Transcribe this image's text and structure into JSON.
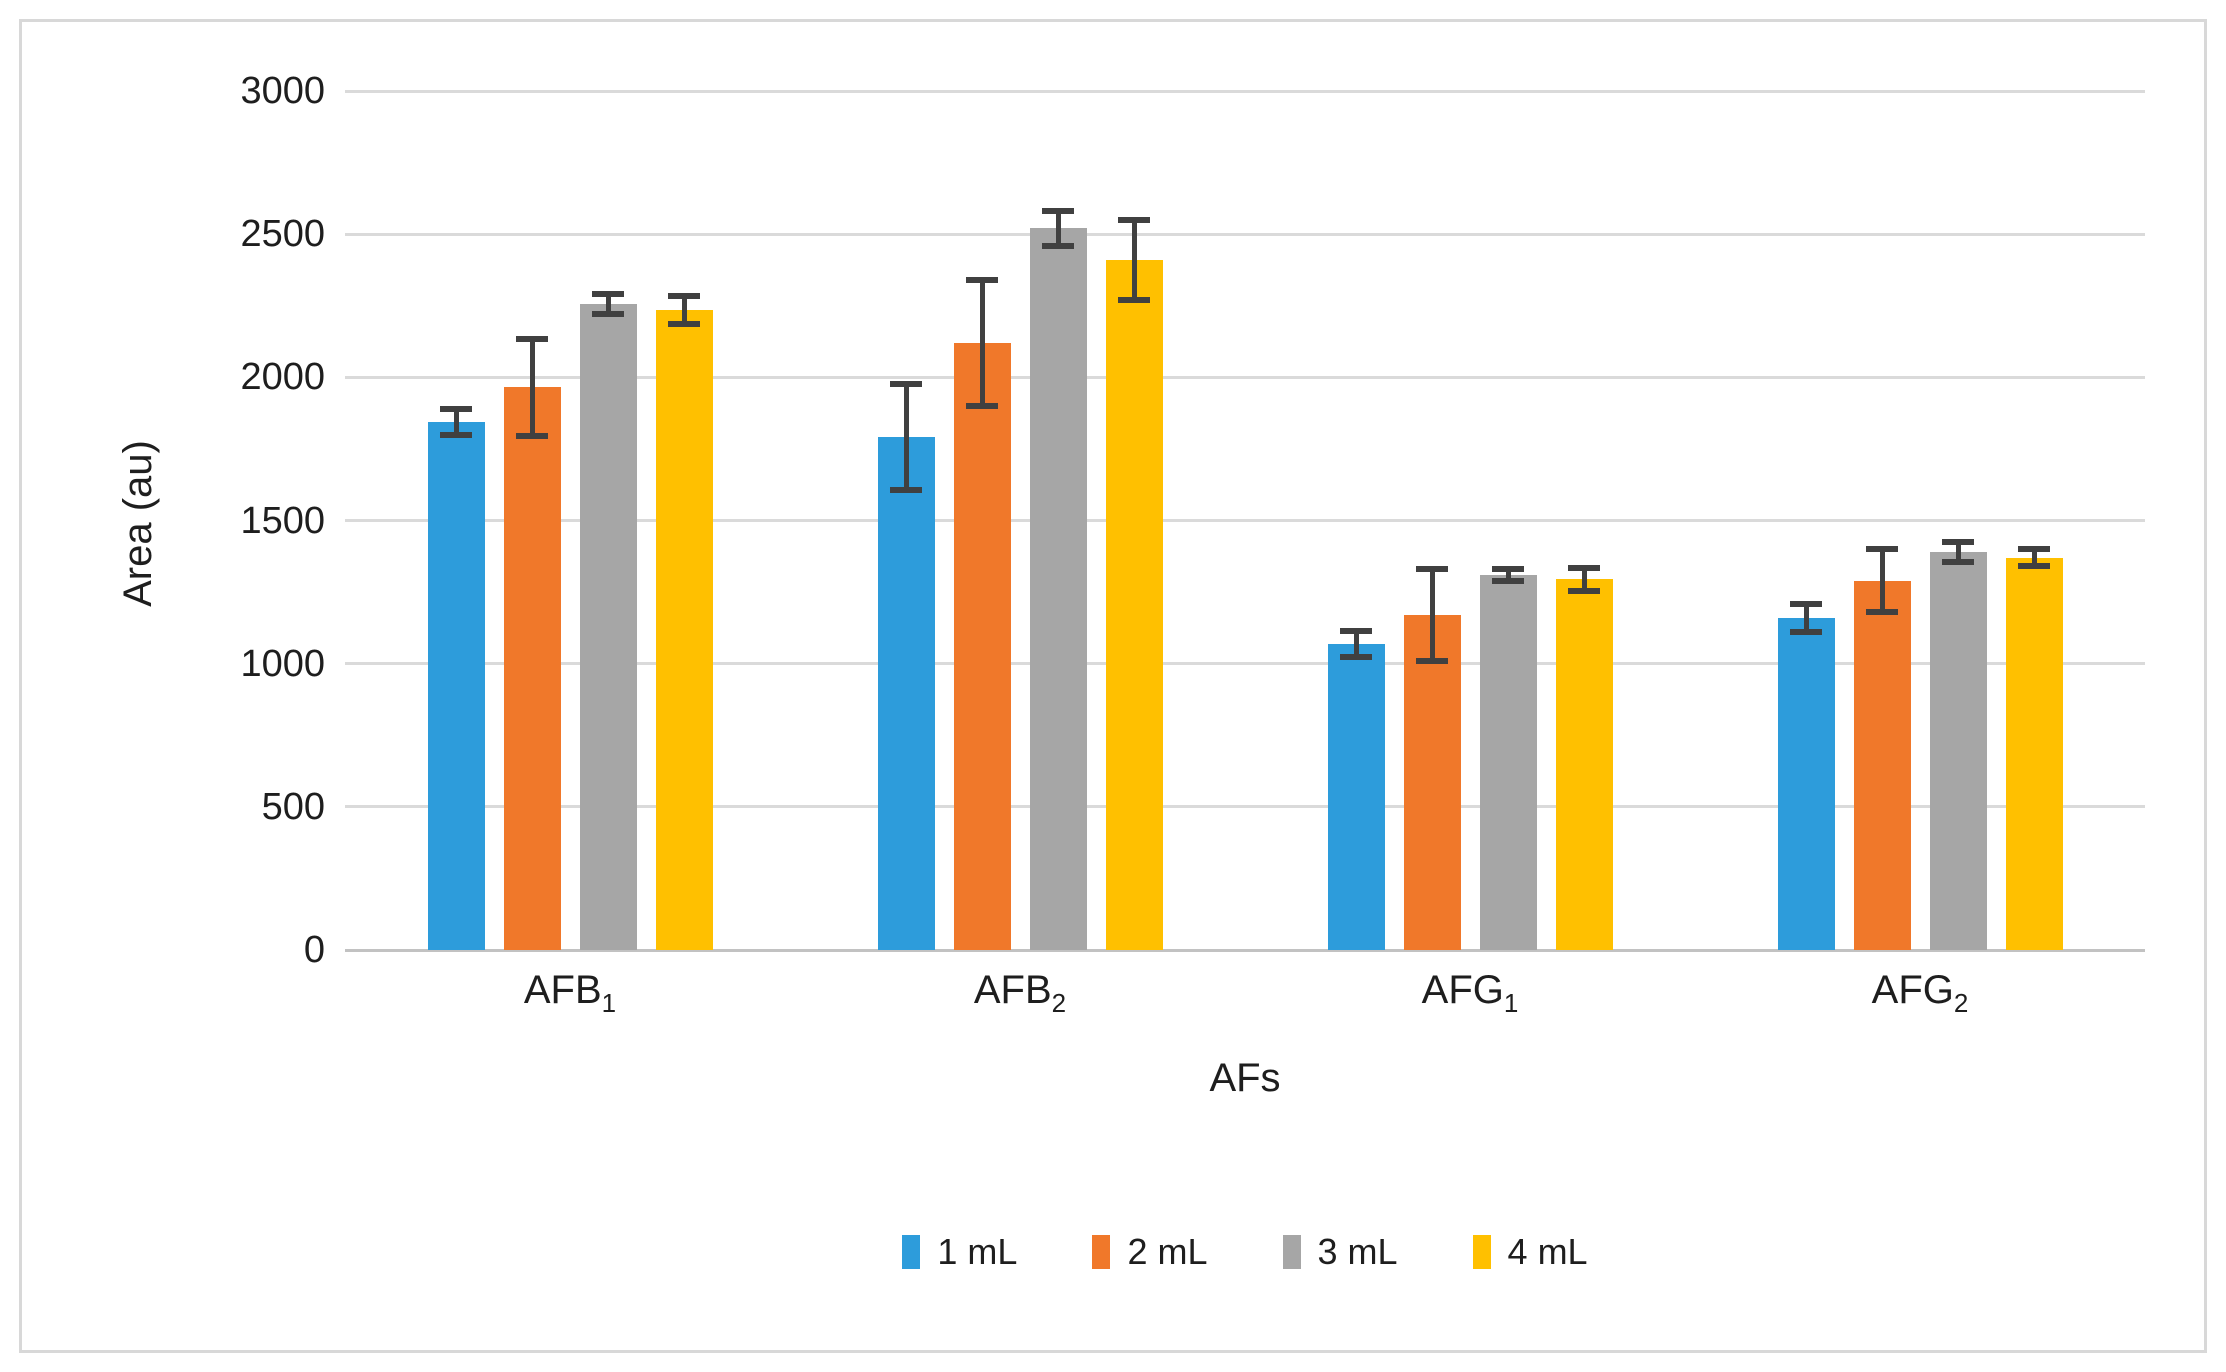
{
  "figure": {
    "background": "#ffffff",
    "frame_border_color": "#d8d8d8",
    "gridline_color": "#dadada",
    "axis_line_color": "#c2c2c2",
    "error_bar_color": "#404040",
    "text_color": "#1e1e1e"
  },
  "chart_data": {
    "type": "bar",
    "title": "",
    "xlabel": "AFs",
    "ylabel": "Area (au)",
    "ylim": [
      0,
      3000
    ],
    "ytick_interval": 500,
    "yticks": [
      0,
      500,
      1000,
      1500,
      2000,
      2500,
      3000
    ],
    "ytick_labels": [
      "0",
      "500",
      "1000",
      "1500",
      "2000",
      "2500",
      "3000"
    ],
    "grid": true,
    "error_bars": true,
    "legend_position": "bottom",
    "categories": [
      "AFB1",
      "AFB2",
      "AFG1",
      "AFG2"
    ],
    "categories_rich": [
      {
        "base": "AFB",
        "sub": "1"
      },
      {
        "base": "AFB",
        "sub": "2"
      },
      {
        "base": "AFG",
        "sub": "1"
      },
      {
        "base": "AFG",
        "sub": "2"
      }
    ],
    "series": [
      {
        "name": "1 mL",
        "color": "#2d9cdb",
        "values": [
          1845,
          1790,
          1070,
          1160
        ],
        "errors": [
          45,
          185,
          45,
          50
        ]
      },
      {
        "name": "2 mL",
        "color": "#f0782a",
        "values": [
          1965,
          2120,
          1170,
          1290
        ],
        "errors": [
          170,
          220,
          160,
          110
        ]
      },
      {
        "name": "3 mL",
        "color": "#a6a6a6",
        "values": [
          2255,
          2520,
          1310,
          1390
        ],
        "errors": [
          35,
          60,
          20,
          35
        ]
      },
      {
        "name": "4 mL",
        "color": "#ffc000",
        "values": [
          2235,
          2410,
          1295,
          1370
        ],
        "errors": [
          50,
          140,
          40,
          30
        ]
      }
    ]
  }
}
